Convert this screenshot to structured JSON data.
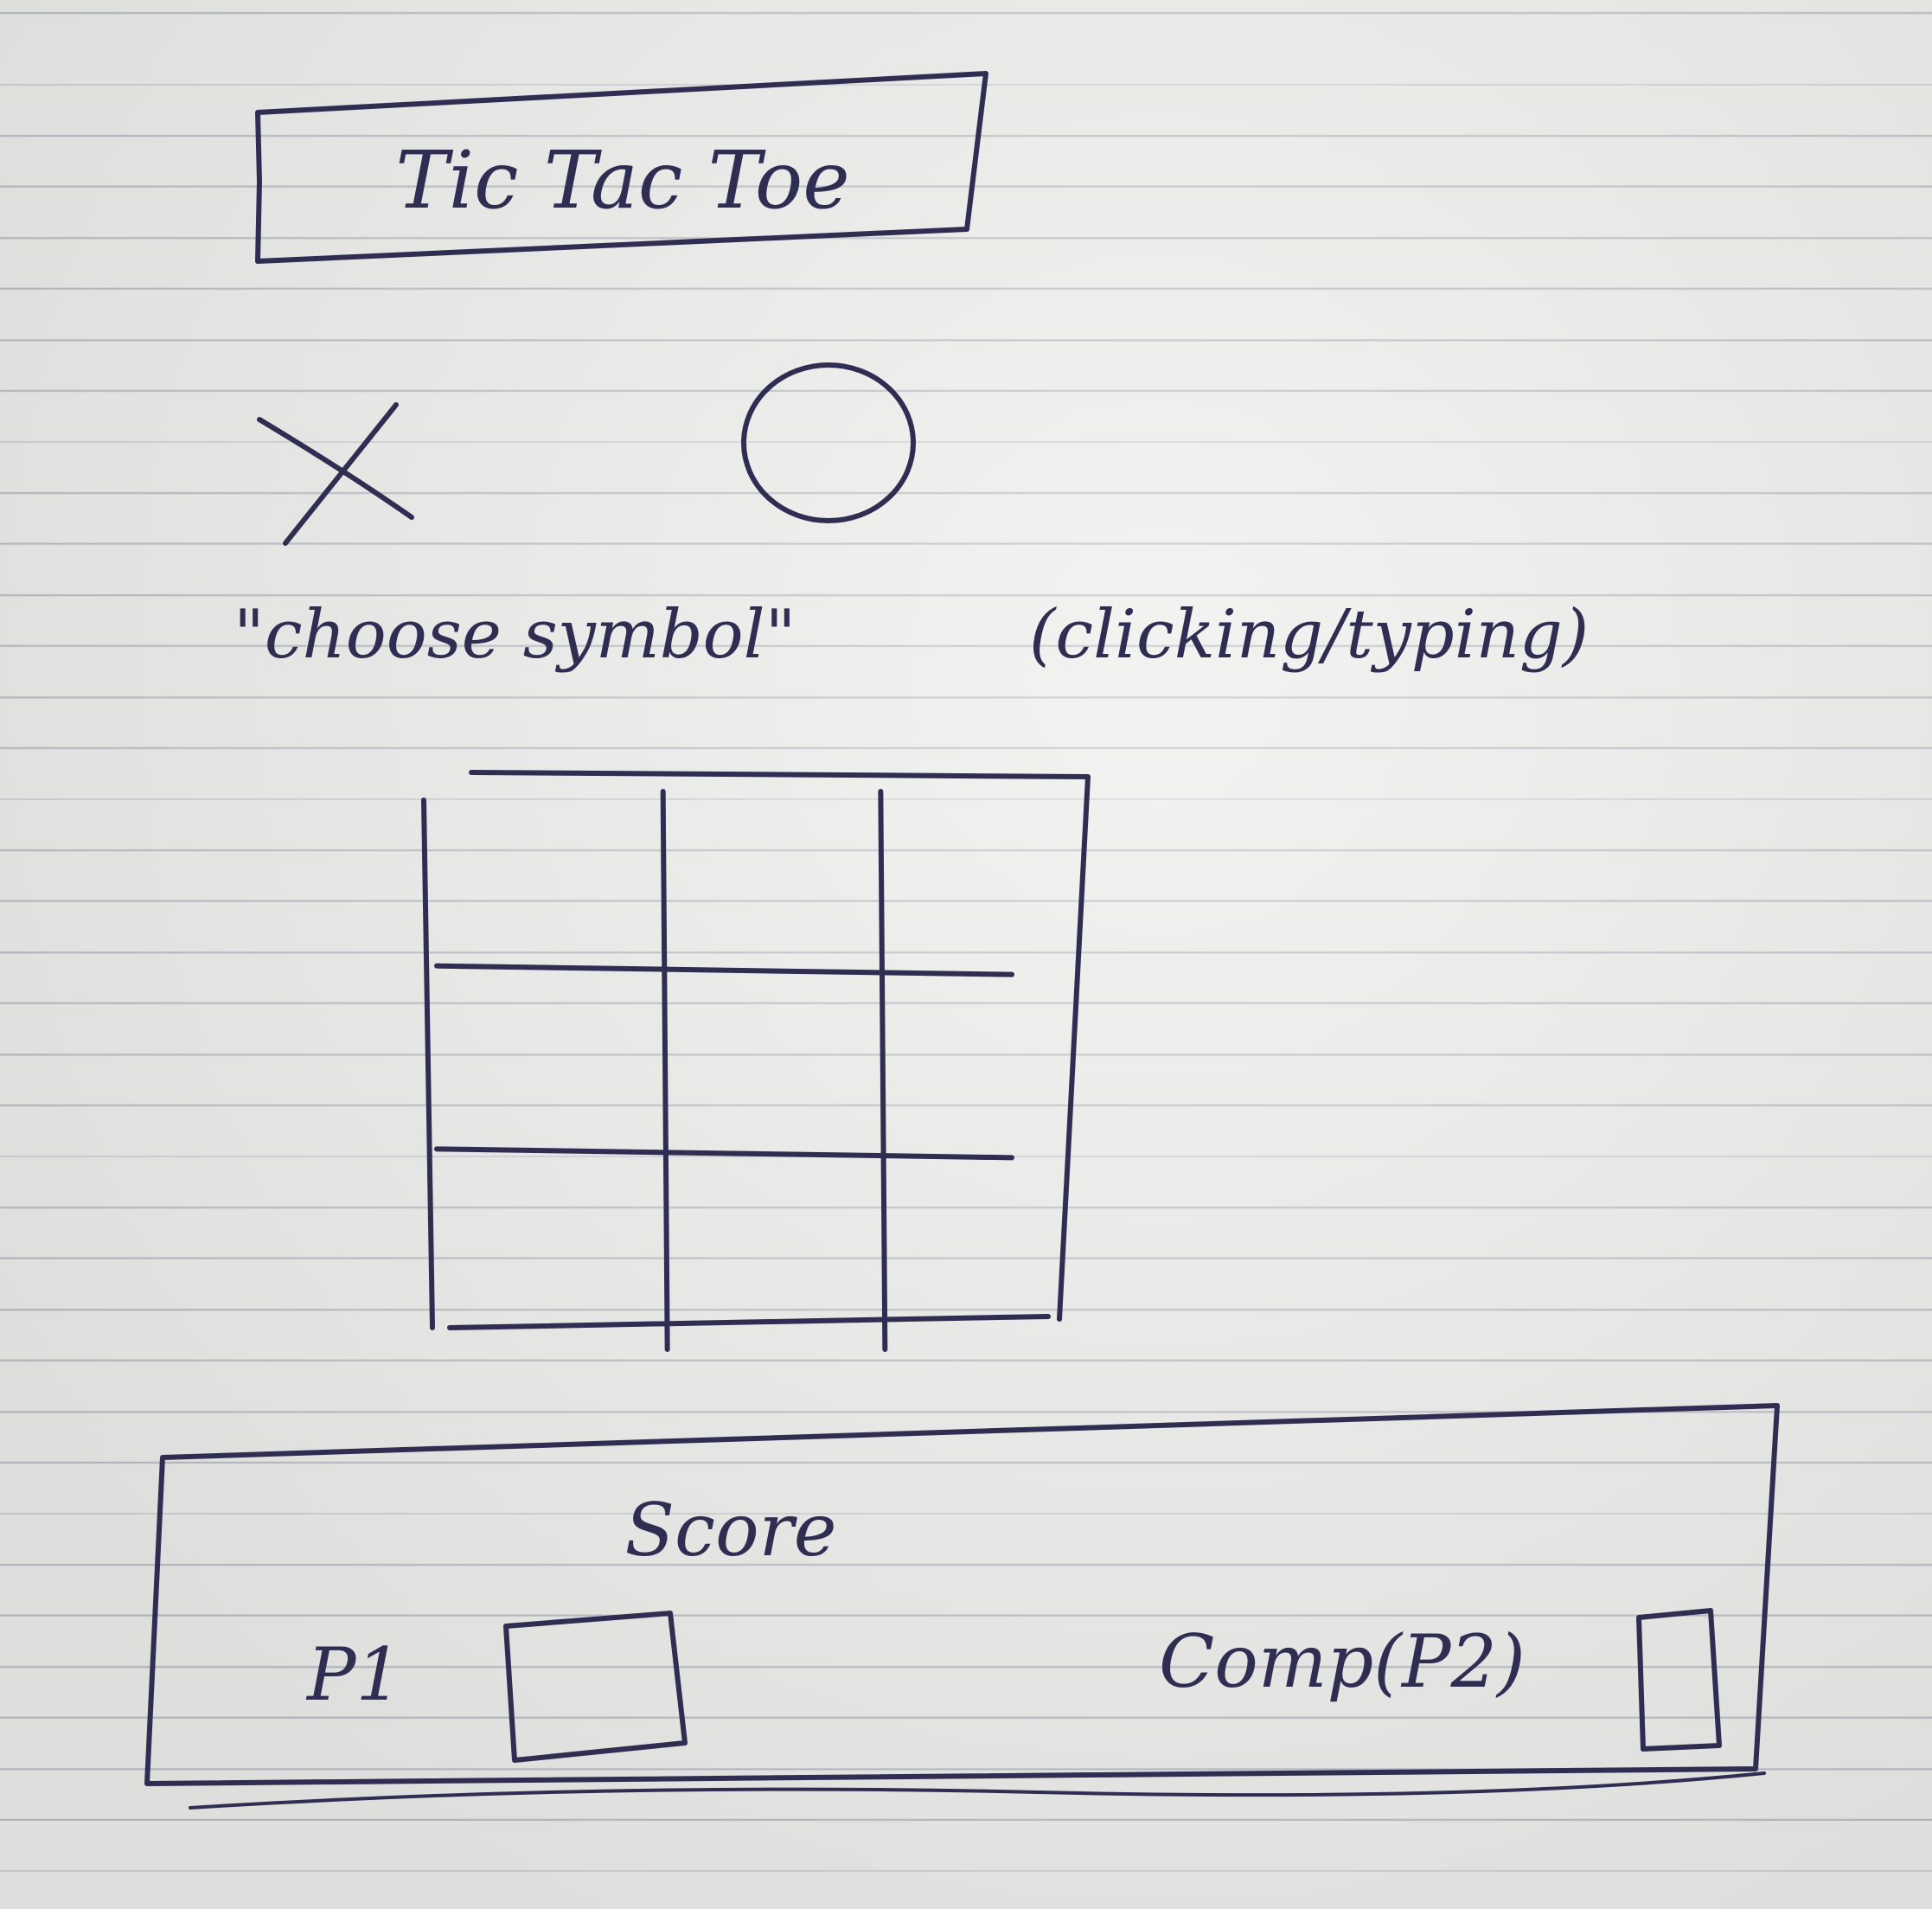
{
  "title": "Tic Tac Toe",
  "symbols": {
    "x_label": "X",
    "o_label": "O",
    "instruction": "\"choose symbol\"",
    "instruction_note": "(clicking/typing)"
  },
  "board": {
    "rows": 3,
    "cols": 3
  },
  "score": {
    "heading": "Score",
    "player1_label": "P1",
    "player2_label": "Comp(P2)"
  },
  "colors": {
    "ink": "#2f2d52",
    "paper": "#ececea",
    "rule_lines": "#b9bcc4"
  }
}
